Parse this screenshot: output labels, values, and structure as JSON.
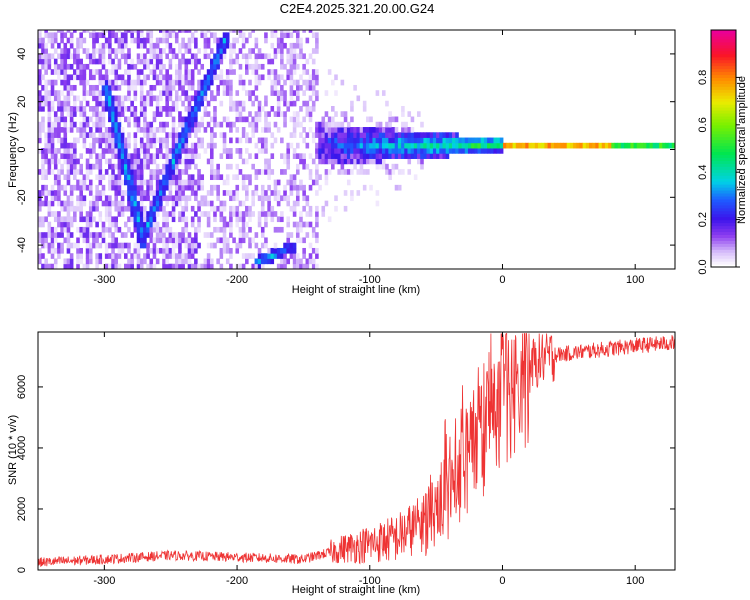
{
  "title": "C2E4.2025.321.20.00.G24",
  "chart_data": [
    {
      "type": "heatmap",
      "xlabel": "Height of straight line (km)",
      "ylabel": "Frequency (Hz)",
      "xlim": [
        -350,
        130
      ],
      "ylim": [
        -50,
        50
      ],
      "xticks": [
        "-300",
        "-200",
        "-100",
        "0",
        "100"
      ],
      "xtick_values": [
        -300,
        -200,
        -100,
        0,
        100
      ],
      "yticks": [
        "-40",
        "-20",
        "0",
        "20",
        "40"
      ],
      "ytick_values": [
        -40,
        -20,
        0,
        20,
        40
      ],
      "colorbar": {
        "label": "Normalized spectral amplitude",
        "range": [
          0,
          1
        ],
        "ticks": [
          "0.0",
          "0.2",
          "0.4",
          "0.6",
          "0.8"
        ],
        "tick_values": [
          0.0,
          0.2,
          0.4,
          0.6,
          0.8
        ]
      },
      "features": [
        {
          "name": "descending-doppler-track",
          "x": [
            -300,
            -282,
            -272
          ],
          "y": [
            25,
            -15,
            -40
          ]
        },
        {
          "name": "ascending-doppler-track",
          "x": [
            -270,
            -245,
            -210
          ],
          "y": [
            -35,
            0,
            45
          ]
        },
        {
          "name": "lower-track-fragment",
          "x": [
            -185,
            -160
          ],
          "y": [
            -48,
            -42
          ]
        },
        {
          "name": "carrier-band",
          "x": [
            -140,
            130
          ],
          "y": [
            0,
            0
          ]
        }
      ]
    },
    {
      "type": "line",
      "xlabel": "Height of straight line (km)",
      "ylabel": "SNR (10 * v/v)",
      "xlim": [
        -350,
        130
      ],
      "ylim": [
        0,
        7800
      ],
      "xticks": [
        "-300",
        "-200",
        "-100",
        "0",
        "100"
      ],
      "xtick_values": [
        -300,
        -200,
        -100,
        0,
        100
      ],
      "yticks": [
        "0",
        "2000",
        "4000",
        "6000"
      ],
      "ytick_values": [
        0,
        2000,
        4000,
        6000
      ],
      "series": [
        {
          "name": "SNR",
          "color": "#ee3333",
          "x": [
            -350,
            -300,
            -250,
            -200,
            -150,
            -120,
            -100,
            -80,
            -60,
            -40,
            -30,
            -20,
            -10,
            0,
            10,
            15,
            20,
            25,
            30,
            40,
            60,
            80,
            100,
            130
          ],
          "y": [
            250,
            350,
            480,
            420,
            350,
            700,
            850,
            1050,
            1550,
            2600,
            3400,
            3900,
            4600,
            5600,
            6200,
            6400,
            6600,
            6800,
            6950,
            7050,
            7150,
            7250,
            7350,
            7450
          ]
        }
      ]
    }
  ]
}
